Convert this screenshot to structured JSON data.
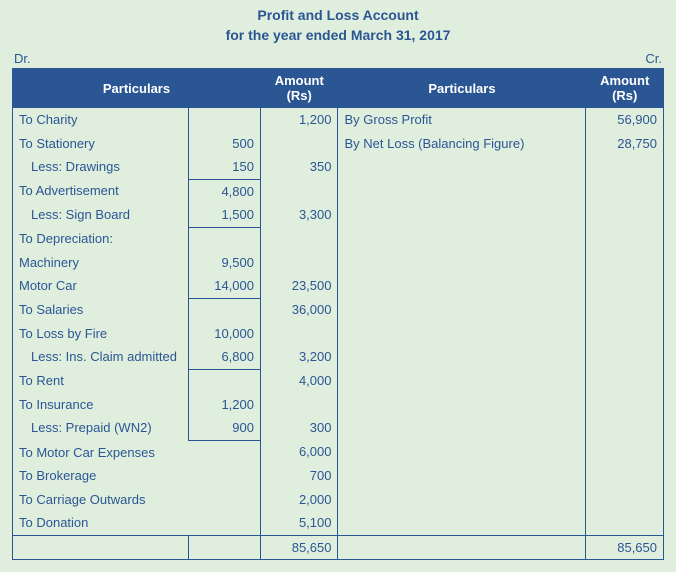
{
  "title_line1": "Profit and Loss Account",
  "title_line2": "for the year ended March 31, 2017",
  "dr_label": "Dr.",
  "cr_label": "Cr.",
  "headers": {
    "particulars": "Particulars",
    "amount": "Amount (Rs)"
  },
  "debit": {
    "charity_label": "To Charity",
    "charity_amt": "1,200",
    "stationery_label": "To Stationery",
    "stationery_sub": "500",
    "stationery_less_label": "Less: Drawings",
    "stationery_less_sub": "150",
    "stationery_amt": "350",
    "advert_label": "To Advertisement",
    "advert_sub": "4,800",
    "advert_less_label": "Less: Sign Board",
    "advert_less_sub": "1,500",
    "advert_amt": "3,300",
    "dep_label": "To Depreciation:",
    "dep_mach_label": "Machinery",
    "dep_mach_sub": "9,500",
    "dep_car_label": "Motor Car",
    "dep_car_sub": "14,000",
    "dep_amt": "23,500",
    "salaries_label": "To Salaries",
    "salaries_amt": "36,000",
    "fire_label": "To Loss by Fire",
    "fire_sub": "10,000",
    "fire_less_label": "Less: Ins. Claim admitted",
    "fire_less_sub": "6,800",
    "fire_amt": "3,200",
    "rent_label": "To Rent",
    "rent_amt": "4,000",
    "ins_label": "To Insurance",
    "ins_sub": "1,200",
    "ins_less_label": "Less: Prepaid (WN2)",
    "ins_less_sub": "900",
    "ins_amt": "300",
    "mcar_exp_label": "To Motor Car Expenses",
    "mcar_exp_amt": "6,000",
    "brokerage_label": "To Brokerage",
    "brokerage_amt": "700",
    "carriage_label": "To Carriage Outwards",
    "carriage_amt": "2,000",
    "donation_label": "To Donation",
    "donation_amt": "5,100",
    "total": "85,650"
  },
  "credit": {
    "gross_profit_label": "By Gross Profit",
    "gross_profit_amt": "56,900",
    "net_loss_label": "By Net Loss (Balancing Figure)",
    "net_loss_amt": "28,750",
    "total": "85,650"
  }
}
